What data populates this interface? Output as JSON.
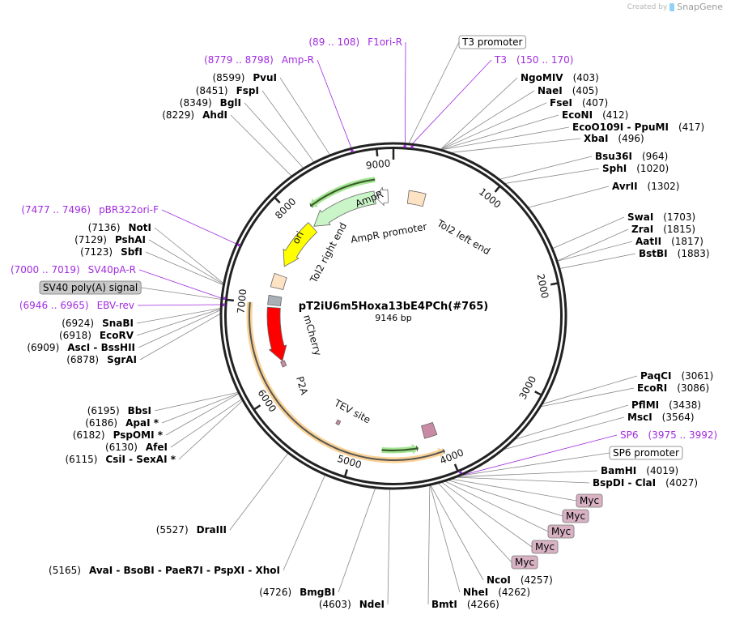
{
  "watermark": {
    "created_by": "Created by",
    "brand": "SnapGene"
  },
  "plasmid": {
    "name": "pT2iU6m5Hoxa13bE4PCh(#765)",
    "length_label": "9146 bp",
    "length_bp": 9146
  },
  "ticks": [
    1000,
    2000,
    3000,
    4000,
    5000,
    6000,
    7000,
    8000,
    9000
  ],
  "enzymes": [
    {
      "names": [
        "NgoMIV"
      ],
      "pos": "403"
    },
    {
      "names": [
        "NaeI"
      ],
      "pos": "405"
    },
    {
      "names": [
        "FseI"
      ],
      "pos": "407"
    },
    {
      "names": [
        "EcoNI"
      ],
      "pos": "412"
    },
    {
      "names": [
        "EcoO109I",
        "PpuMI"
      ],
      "pos": "417"
    },
    {
      "names": [
        "XbaI"
      ],
      "pos": "496"
    },
    {
      "names": [
        "Bsu36I"
      ],
      "pos": "964"
    },
    {
      "names": [
        "SphI"
      ],
      "pos": "1020"
    },
    {
      "names": [
        "AvrII"
      ],
      "pos": "1302"
    },
    {
      "names": [
        "SwaI"
      ],
      "pos": "1703"
    },
    {
      "names": [
        "ZraI"
      ],
      "pos": "1815"
    },
    {
      "names": [
        "AatII"
      ],
      "pos": "1817"
    },
    {
      "names": [
        "BstBI"
      ],
      "pos": "1883"
    },
    {
      "names": [
        "PaqCI"
      ],
      "pos": "3061"
    },
    {
      "names": [
        "EcoRI"
      ],
      "pos": "3086"
    },
    {
      "names": [
        "PflMI"
      ],
      "pos": "3438"
    },
    {
      "names": [
        "MscI"
      ],
      "pos": "3564"
    },
    {
      "names": [
        "BamHI"
      ],
      "pos": "4019"
    },
    {
      "names": [
        "BspDI",
        "ClaI"
      ],
      "pos": "4027"
    },
    {
      "names": [
        "NcoI"
      ],
      "pos": "4257"
    },
    {
      "names": [
        "NheI"
      ],
      "pos": "4262"
    },
    {
      "names": [
        "BmtI"
      ],
      "pos": "4266"
    },
    {
      "names": [
        "NdeI"
      ],
      "pos": "4603"
    },
    {
      "names": [
        "BmgBI"
      ],
      "pos": "4726"
    },
    {
      "names": [
        "AvaI",
        "BsoBI",
        "PaeR7I",
        "PspXI",
        "XhoI"
      ],
      "pos": "5165"
    },
    {
      "names": [
        "DraIII"
      ],
      "pos": "5527"
    },
    {
      "names": [
        "CsiI",
        "SexAI *"
      ],
      "pos": "6115"
    },
    {
      "names": [
        "AfeI"
      ],
      "pos": "6130"
    },
    {
      "names": [
        "PspOMI *"
      ],
      "pos": "6182"
    },
    {
      "names": [
        "ApaI *"
      ],
      "pos": "6186"
    },
    {
      "names": [
        "BbsI"
      ],
      "pos": "6195"
    },
    {
      "names": [
        "SgrAI"
      ],
      "pos": "6878"
    },
    {
      "names": [
        "AscI",
        "BssHII"
      ],
      "pos": "6909"
    },
    {
      "names": [
        "EcoRV"
      ],
      "pos": "6918"
    },
    {
      "names": [
        "SnaBI"
      ],
      "pos": "6924"
    },
    {
      "names": [
        "SbfI"
      ],
      "pos": "7123"
    },
    {
      "names": [
        "PshAI"
      ],
      "pos": "7129"
    },
    {
      "names": [
        "NotI"
      ],
      "pos": "7136"
    },
    {
      "names": [
        "AhdI"
      ],
      "pos": "8229"
    },
    {
      "names": [
        "BglI"
      ],
      "pos": "8349"
    },
    {
      "names": [
        "FspI"
      ],
      "pos": "8451"
    },
    {
      "names": [
        "PvuI"
      ],
      "pos": "8599"
    }
  ],
  "primers": [
    {
      "name": "F1ori-R",
      "range": "89 .. 108",
      "bp": 98
    },
    {
      "name": "T3",
      "range": "150 .. 170",
      "bp": 160
    },
    {
      "name": "SP6",
      "range": "3975 .. 3992",
      "bp": 3983
    },
    {
      "name": "EBV-rev",
      "range": "6946 .. 6965",
      "bp": 6955
    },
    {
      "name": "SV40pA-R",
      "range": "7000 .. 7019",
      "bp": 7010
    },
    {
      "name": "pBR322ori-F",
      "range": "7477 .. 7496",
      "bp": 7486
    },
    {
      "name": "Amp-R",
      "range": "8779 .. 8798",
      "bp": 8788
    }
  ],
  "boxed_features": [
    {
      "label": "T3 promoter",
      "bp": 130,
      "color": "#ffffff"
    },
    {
      "label": "SP6 promoter",
      "bp": 3990,
      "color": "#ffffff"
    },
    {
      "label": "Myc",
      "bp": 4070,
      "color": "#d8b2c2"
    },
    {
      "label": "Myc",
      "bp": 4100,
      "color": "#d8b2c2"
    },
    {
      "label": "Myc",
      "bp": 4130,
      "color": "#d8b2c2"
    },
    {
      "label": "Myc",
      "bp": 4160,
      "color": "#d8b2c2"
    },
    {
      "label": "Myc",
      "bp": 4190,
      "color": "#d8b2c2"
    },
    {
      "label": "SV40 poly(A) signal",
      "bp": 7000,
      "color": "#c8c8c8"
    }
  ],
  "features": [
    {
      "label": "Tol2 left end",
      "start": 180,
      "end": 380,
      "dir": 0,
      "color": "#fde2c4"
    },
    {
      "label": "AmpR promoter",
      "start": 8930,
      "end": 9080,
      "dir": -1,
      "color": "#ffffff"
    },
    {
      "label": "AmpR",
      "start": 8090,
      "end": 8920,
      "dir": -1,
      "color": "#c9f5c8"
    },
    {
      "label": "ori",
      "start": 7480,
      "end": 8070,
      "dir": -1,
      "color": "#ffff00"
    },
    {
      "label": "Tol2 right end",
      "start": 7200,
      "end": 7360,
      "dir": 0,
      "color": "#fde2c4"
    },
    {
      "label": "",
      "start": 6990,
      "end": 7100,
      "dir": 0,
      "color": "#a9b0b8"
    },
    {
      "label": "mCherry",
      "start": 6300,
      "end": 6960,
      "dir": -1,
      "color": "#ff0000"
    },
    {
      "label": "P2A",
      "start": 6230,
      "end": 6295,
      "dir": 0,
      "color": "#c98aa6"
    },
    {
      "label": "TEV site",
      "start": 5250,
      "end": 5290,
      "dir": 0,
      "color": "#c98aa6"
    },
    {
      "label": "",
      "start": 4060,
      "end": 4210,
      "dir": 0,
      "color": "#c98aa6"
    }
  ],
  "orf": {
    "start": 4040,
    "end": 7000,
    "dir": -1,
    "color": "#f9c77b"
  },
  "thin_arrows": [
    {
      "start": 8200,
      "end": 8950,
      "dir": -1,
      "color": "#8fe07a"
    },
    {
      "start": 4300,
      "end": 4700,
      "dir": -1,
      "color": "#8fe07a"
    }
  ],
  "colors": {
    "primer": "#a12be0",
    "ring": "#222222",
    "leader": "#888888"
  }
}
